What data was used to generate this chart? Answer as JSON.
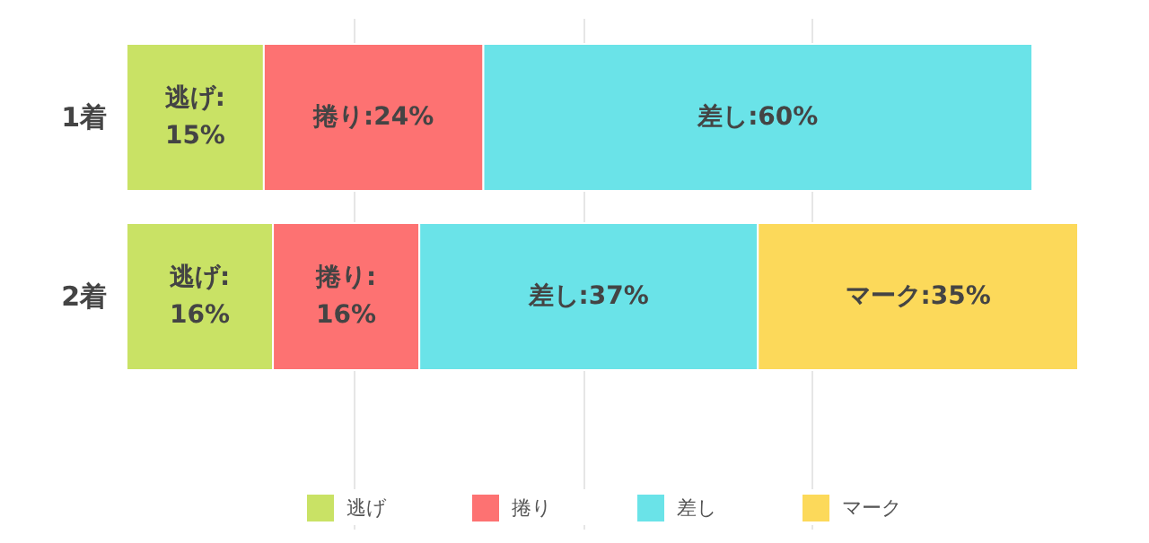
{
  "chart_data": {
    "type": "bar",
    "orientation": "horizontal",
    "stacked": true,
    "categories": [
      "1着",
      "2着"
    ],
    "series": [
      {
        "name": "逃げ",
        "color": "#c9e265",
        "values": [
          15,
          16
        ],
        "value_labels": [
          "逃げ:\n15%",
          "逃げ:\n16%"
        ]
      },
      {
        "name": "捲り",
        "color": "#fd7272",
        "values": [
          24,
          16
        ],
        "value_labels": [
          "捲り:24%",
          "捲り:\n16%"
        ]
      },
      {
        "name": "差し",
        "color": "#6ae3e8",
        "values": [
          60,
          37
        ],
        "value_labels": [
          "差し:60%",
          "差し:37%"
        ]
      },
      {
        "name": "マーク",
        "color": "#fcd95a",
        "values": [
          null,
          35
        ],
        "value_labels": [
          null,
          "マーク:35%"
        ]
      }
    ],
    "xlim": [
      0,
      104
    ],
    "xticks": [
      {
        "value": 25,
        "label": null
      },
      {
        "value": 50,
        "label": null
      },
      {
        "value": 75,
        "label": null
      }
    ],
    "grid": "x",
    "tick_labels": "y",
    "legend": "bottom"
  }
}
